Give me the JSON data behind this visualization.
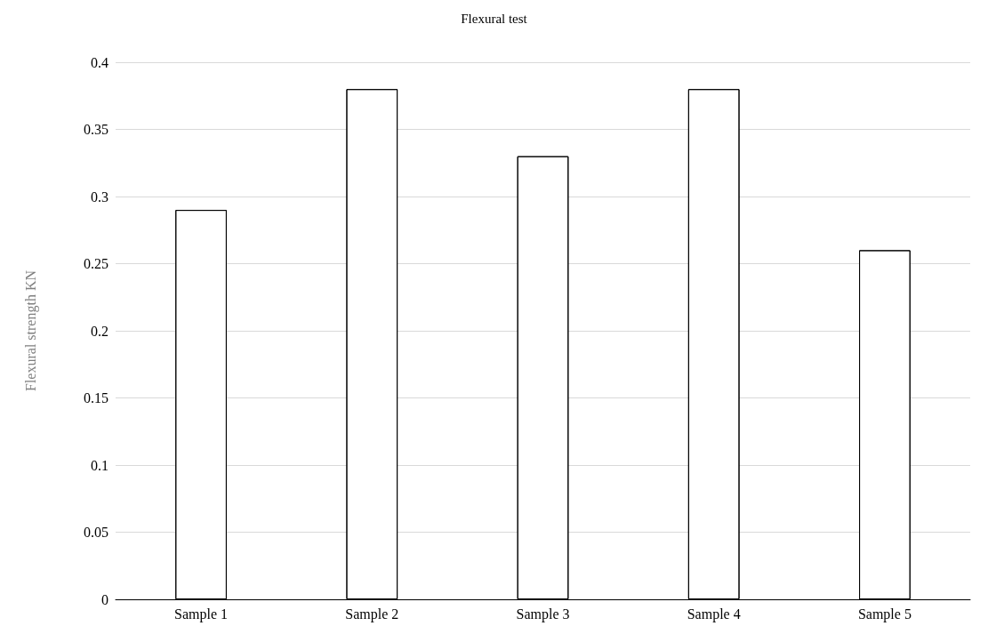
{
  "chart_data": {
    "type": "bar",
    "title": "Flexural test",
    "ylabel": "Flexural strength KN",
    "categories": [
      "Sample 1",
      "Sample 2",
      "Sample 3",
      "Sample 4",
      "Sample 5"
    ],
    "values": [
      0.29,
      0.38,
      0.33,
      0.38,
      0.26
    ],
    "color": "#ffffff",
    "ylim": [
      0,
      0.4
    ],
    "yticks": [
      0,
      0.05,
      0.1,
      0.15,
      0.2,
      0.25,
      0.3,
      0.35,
      0.4
    ],
    "grid": "y"
  }
}
